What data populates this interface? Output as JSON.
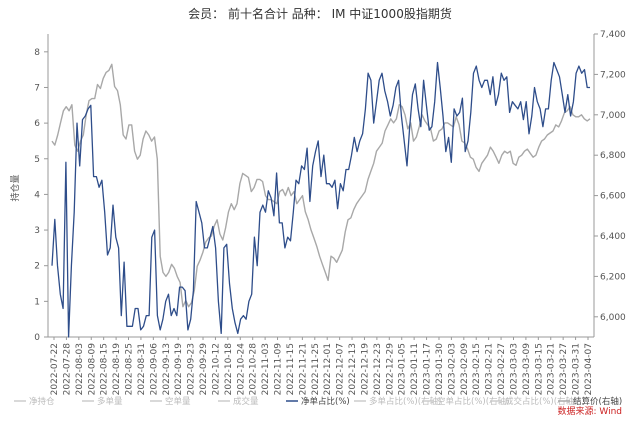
{
  "chart_data": {
    "type": "line",
    "title": "会员： 前十名合计 品种： IM 中证1000股指期货",
    "ylabel": "持仓量",
    "ylim": [
      0,
      8.5
    ],
    "y2lim": [
      5900,
      7400
    ],
    "yticks": [
      "0",
      "1",
      "2",
      "3",
      "4",
      "5",
      "6",
      "7",
      "8"
    ],
    "y2ticks": [
      "6,000",
      "6,200",
      "6,400",
      "6,600",
      "6,800",
      "7,000",
      "7,200",
      "7,400"
    ],
    "y2tick_values": [
      6000,
      6200,
      6400,
      6600,
      6800,
      7000,
      7200,
      7400
    ],
    "x_tick_labels": [
      "2022-07-22",
      "2022-07-28",
      "2022-08-03",
      "2022-08-09",
      "2022-08-15",
      "2022-08-19",
      "2022-08-25",
      "2022-08-31",
      "2022-09-06",
      "2022-09-13",
      "2022-09-19",
      "2022-09-23",
      "2022-09-29",
      "2022-10-12",
      "2022-10-18",
      "2022-10-24",
      "2022-10-28",
      "2022-11-03",
      "2022-11-09",
      "2022-11-15",
      "2022-11-21",
      "2022-11-25",
      "2022-12-01",
      "2022-12-07",
      "2022-12-13",
      "2022-12-19",
      "2022-12-23",
      "2022-12-29",
      "2023-01-05",
      "2023-01-11",
      "2023-01-17",
      "2023-01-30",
      "2023-02-03",
      "2023-02-09",
      "2023-02-15",
      "2023-02-21",
      "2023-02-27",
      "2023-03-03",
      "2023-03-09",
      "2023-03-15",
      "2023-03-21",
      "2023-03-27",
      "2023-03-31",
      "2023-04-07"
    ],
    "series": [
      {
        "name": "净单占比(%)",
        "axis": "left",
        "color": "#2e4d8a",
        "values": [
          2.0,
          3.3,
          2.0,
          1.2,
          0.8,
          4.9,
          0.0,
          2.0,
          3.5,
          6.0,
          4.8,
          6.1,
          6.2,
          6.4,
          6.5,
          4.5,
          4.5,
          4.2,
          4.4,
          3.5,
          2.3,
          2.5,
          3.7,
          2.8,
          2.5,
          0.6,
          2.1,
          0.3,
          0.3,
          0.3,
          0.8,
          0.8,
          0.2,
          0.3,
          0.6,
          0.6,
          2.8,
          3.0,
          0.6,
          0.2,
          0.5,
          1.0,
          1.2,
          0.6,
          0.8,
          0.6,
          1.4,
          1.4,
          1.3,
          0.2,
          0.5,
          1.3,
          3.8,
          3.5,
          3.2,
          2.5,
          2.5,
          2.8,
          3.1,
          2.5,
          1.0,
          0.1,
          2.5,
          2.6,
          1.5,
          0.8,
          0.4,
          0.1,
          0.5,
          0.6,
          0.5,
          1.0,
          1.2,
          2.8,
          2.0,
          3.5,
          3.7,
          3.5,
          4.1,
          3.9,
          3.4,
          4.6,
          3.2,
          3.2,
          2.5,
          2.8,
          2.7,
          3.5,
          4.4,
          4.3,
          4.8,
          4.7,
          5.3,
          3.8,
          4.8,
          5.2,
          5.5,
          4.5,
          5.1,
          4.3,
          4.3,
          4.2,
          4.4,
          3.6,
          4.3,
          4.1,
          4.7,
          4.7,
          5.1,
          5.6,
          5.2,
          5.5,
          5.7,
          6.4,
          7.4,
          7.2,
          6.0,
          6.6,
          7.2,
          7.4,
          6.9,
          6.6,
          6.2,
          6.5,
          7.0,
          7.2,
          6.2,
          5.5,
          4.8,
          5.9,
          6.8,
          7.1,
          6.4,
          5.9,
          7.2,
          6.5,
          5.8,
          5.9,
          6.6,
          7.7,
          7.0,
          6.2,
          5.2,
          5.6,
          4.9,
          6.4,
          6.2,
          6.3,
          6.7,
          5.2,
          5.5,
          6.3,
          7.4,
          7.6,
          7.2,
          7.0,
          7.2,
          7.2,
          6.8,
          7.3,
          6.5,
          6.8,
          7.4,
          7.2,
          7.3,
          6.3,
          6.6,
          6.5,
          6.4,
          6.6,
          6.1,
          6.6,
          5.7,
          6.2,
          7.0,
          6.6,
          6.4,
          5.9,
          6.4,
          6.4,
          7.2,
          7.7,
          7.5,
          7.3,
          6.8,
          6.3,
          6.8,
          6.2,
          6.6,
          7.4,
          7.6,
          7.4,
          7.5,
          7.0,
          7.0
        ]
      },
      {
        "name": "结算价(右轴)",
        "axis": "right",
        "color": "#a8a8a8",
        "values": [
          6870,
          6850,
          6900,
          6960,
          7020,
          7040,
          7020,
          7050,
          6850,
          6820,
          6870,
          6900,
          7000,
          7070,
          7080,
          7080,
          7150,
          7130,
          7180,
          7210,
          7220,
          7250,
          7140,
          7120,
          7050,
          6900,
          6880,
          6950,
          6950,
          6820,
          6780,
          6800,
          6880,
          6920,
          6900,
          6870,
          6890,
          6780,
          6300,
          6220,
          6200,
          6220,
          6260,
          6240,
          6200,
          6170,
          6050,
          6080,
          6050,
          6070,
          6130,
          6250,
          6280,
          6320,
          6370,
          6390,
          6400,
          6450,
          6480,
          6410,
          6380,
          6440,
          6520,
          6560,
          6530,
          6560,
          6660,
          6710,
          6700,
          6690,
          6620,
          6640,
          6680,
          6680,
          6670,
          6600,
          6580,
          6580,
          6570,
          6560,
          6620,
          6630,
          6600,
          6640,
          6600,
          6620,
          6560,
          6580,
          6600,
          6520,
          6480,
          6430,
          6390,
          6350,
          6300,
          6260,
          6220,
          6180,
          6300,
          6290,
          6270,
          6300,
          6330,
          6420,
          6480,
          6490,
          6530,
          6560,
          6580,
          6600,
          6620,
          6680,
          6720,
          6760,
          6820,
          6840,
          6860,
          6920,
          6950,
          6980,
          6960,
          6980,
          7050,
          7040,
          7000,
          6930,
          6960,
          6870,
          6890,
          6940,
          7000,
          6970,
          6950,
          6930,
          6870,
          6880,
          6920,
          6930,
          6960,
          6960,
          6950,
          6940,
          6990,
          6950,
          6870,
          6860,
          6830,
          6790,
          6780,
          6740,
          6720,
          6760,
          6780,
          6800,
          6840,
          6820,
          6790,
          6760,
          6800,
          6820,
          6810,
          6820,
          6760,
          6750,
          6790,
          6800,
          6820,
          6830,
          6810,
          6790,
          6800,
          6840,
          6870,
          6880,
          6900,
          6910,
          6920,
          6950,
          6940,
          6970,
          7010,
          7020,
          7040,
          7000,
          6990,
          6990,
          7000,
          6980,
          6970,
          6980
        ]
      }
    ],
    "legend": [
      {
        "label": "净持仓",
        "active": false
      },
      {
        "label": "多单量",
        "active": false
      },
      {
        "label": "空单量",
        "active": false
      },
      {
        "label": "成交量",
        "active": false
      },
      {
        "label": "净单占比(%)",
        "active": true,
        "color": "#2e4d8a"
      },
      {
        "label": "多单占比(%)(右轴)",
        "active": false
      },
      {
        "label": "空单占比(%)(右轴)",
        "active": false
      },
      {
        "label": "成交占比(%)(右轴)",
        "active": false
      },
      {
        "label": "结算价(右轴)",
        "active": true,
        "color": "#a8a8a8"
      }
    ],
    "legend_position": "bottom",
    "source": "数据来源: Wind",
    "grid": false
  }
}
